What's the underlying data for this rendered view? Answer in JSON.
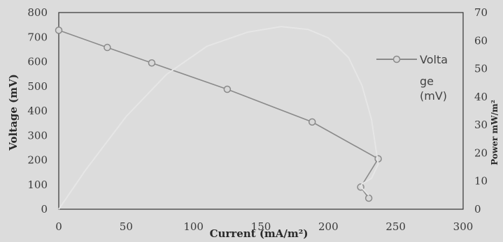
{
  "chart_data": {
    "type": "line",
    "title": "",
    "xlabel": "Current (mA/m²)",
    "ylabel": "Voltage (mV)",
    "y2label": "Power mW/m²",
    "xlim": [
      0,
      300
    ],
    "ylim": [
      0,
      800
    ],
    "y2lim": [
      0,
      70
    ],
    "x_ticks": [
      0,
      50,
      100,
      150,
      200,
      250,
      300
    ],
    "y_ticks": [
      0,
      100,
      200,
      300,
      400,
      500,
      600,
      700,
      800
    ],
    "y2_ticks": [
      0,
      10,
      20,
      30,
      40,
      50,
      60,
      70
    ],
    "grid": false,
    "legend_position": "right",
    "series": [
      {
        "name": "Volta ge (mV)",
        "name_lines": [
          "Volta",
          "ge",
          "(mV)"
        ],
        "axis": "left",
        "color": "#8a8a8a",
        "marker": "circle",
        "x": [
          0,
          36,
          69,
          125,
          188,
          237,
          224,
          230
        ],
        "y": [
          728,
          658,
          595,
          488,
          355,
          205,
          90,
          45
        ]
      },
      {
        "axis": "right",
        "color": "#e6e6e6",
        "marker": "none",
        "x": [
          0,
          20,
          50,
          80,
          110,
          140,
          165,
          185,
          200,
          215,
          225,
          232,
          237,
          232,
          225,
          224,
          230
        ],
        "y": [
          0,
          14,
          33,
          48,
          58,
          63,
          65,
          64,
          61,
          54,
          44,
          32,
          16,
          11,
          9,
          8,
          5
        ]
      }
    ]
  }
}
